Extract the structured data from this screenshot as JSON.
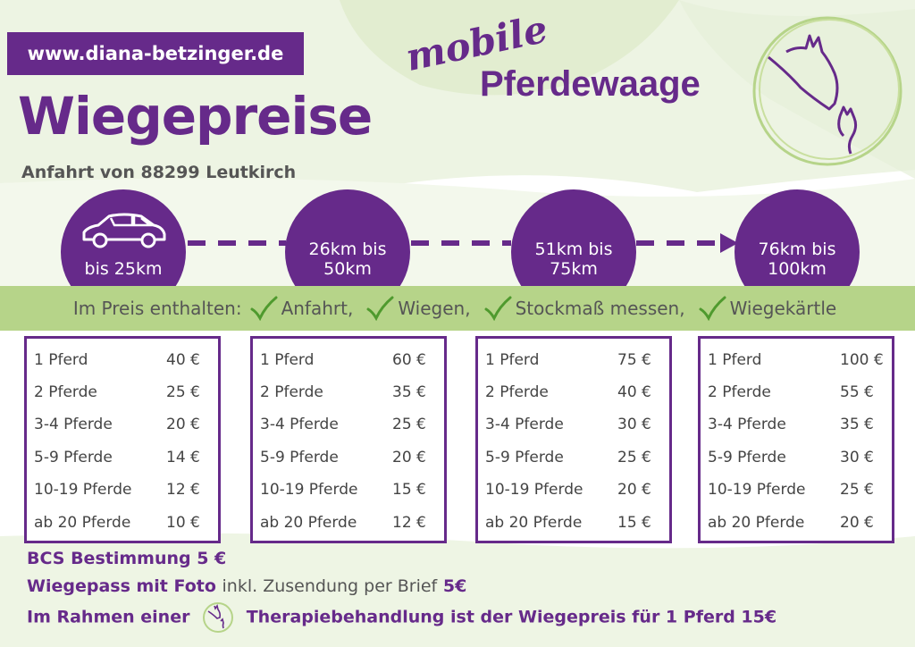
{
  "header": {
    "url": "www.diana-betzinger.de",
    "title": "Wiegepreise",
    "subtitle": "Anfahrt von 88299 Leutkirch",
    "brand_small": "mobile",
    "brand_large": "Pferdewaage"
  },
  "zones": [
    {
      "label": "bis 25km",
      "icon": "car-icon"
    },
    {
      "label": "26km bis\n50km"
    },
    {
      "label": "51km bis\n75km"
    },
    {
      "label": "76km bis\n100km"
    }
  ],
  "included": {
    "label": "Im Preis enthalten:",
    "items": [
      "Anfahrt,",
      "Wiegen,",
      "Stockmaß messen,",
      "Wiegekärtle"
    ],
    "check_icon": "checkmark-icon"
  },
  "price_tables": [
    {
      "rows": [
        [
          "1 Pferd",
          "40 €"
        ],
        [
          "2 Pferde",
          "25 €"
        ],
        [
          "3-4 Pferde",
          "20 €"
        ],
        [
          "5-9 Pferde",
          "14 €"
        ],
        [
          "10-19 Pferde",
          "12 €"
        ],
        [
          "ab 20 Pferde",
          "10 €"
        ]
      ]
    },
    {
      "rows": [
        [
          "1 Pferd",
          "60 €"
        ],
        [
          "2 Pferde",
          "35 €"
        ],
        [
          "3-4 Pferde",
          "25 €"
        ],
        [
          "5-9 Pferde",
          "20 €"
        ],
        [
          "10-19 Pferde",
          "15 €"
        ],
        [
          "ab 20 Pferde",
          "12 €"
        ]
      ]
    },
    {
      "rows": [
        [
          "1 Pferd",
          "75 €"
        ],
        [
          "2 Pferde",
          "40 €"
        ],
        [
          "3-4 Pferde",
          "30 €"
        ],
        [
          "5-9 Pferde",
          "25 €"
        ],
        [
          "10-19 Pferde",
          "20 €"
        ],
        [
          "ab 20 Pferde",
          "15 €"
        ]
      ]
    },
    {
      "rows": [
        [
          "1 Pferd",
          "100 €"
        ],
        [
          "2 Pferde",
          "55 €"
        ],
        [
          "3-4 Pferde",
          "35 €"
        ],
        [
          "5-9 Pferde",
          "30 €"
        ],
        [
          "10-19 Pferde",
          "25 €"
        ],
        [
          "ab 20 Pferde",
          "20 €"
        ]
      ]
    }
  ],
  "footer": {
    "bcs": "BCS Bestimmung 5 €",
    "pass_bold": "Wiegepass mit Foto",
    "pass_plain": "inkl. Zusendung per Brief",
    "pass_price": "5€",
    "therapy_a": "Im Rahmen einer",
    "therapy_b": "Therapiebehandlung ist der Wiegepreis für 1 Pferd 15€"
  },
  "colors": {
    "purple": "#662a8a",
    "green": "#b6d489",
    "wash": "#e3eed3"
  }
}
